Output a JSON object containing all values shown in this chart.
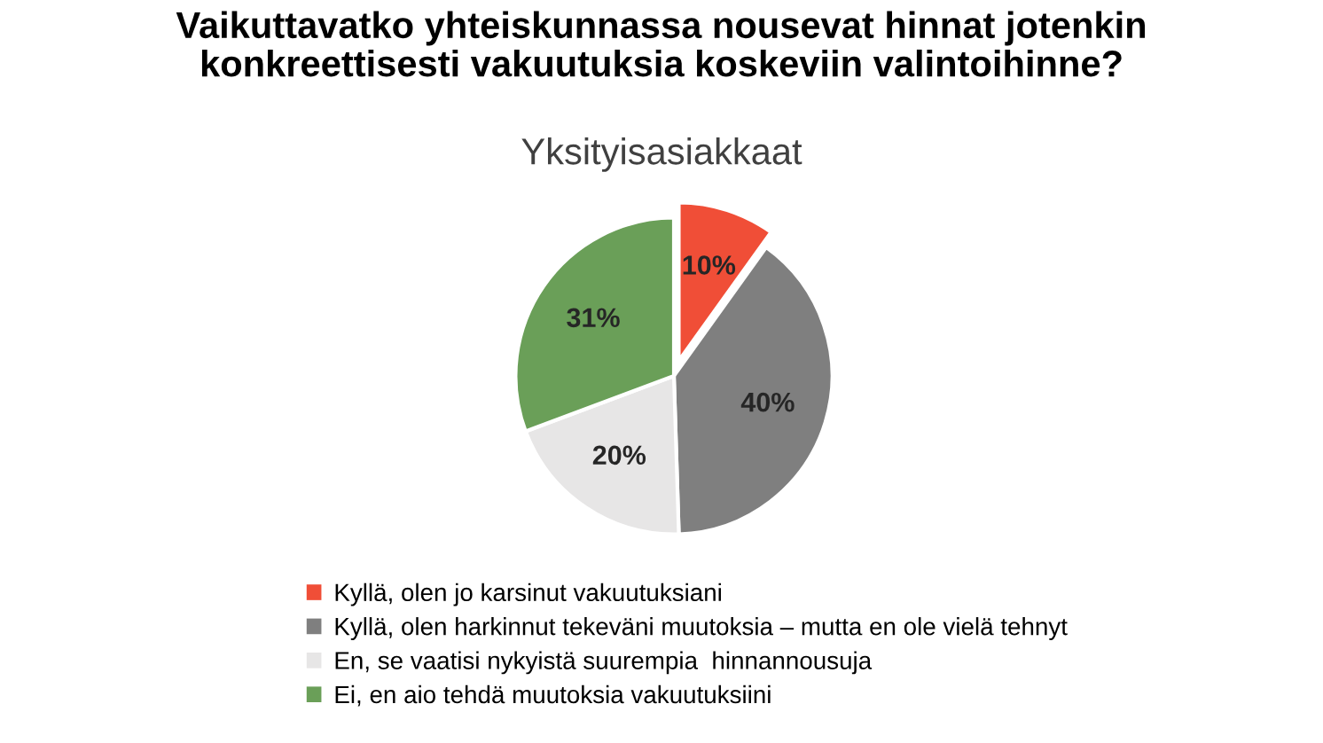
{
  "chart_data": {
    "type": "pie",
    "title": "Vaikuttavatko yhteiskunnassa nousevat hinnat jotenkin\nkonkreettisesti vakuutuksia koskeviin valintoihinne?",
    "subtitle": "Yksityisasiakkaat",
    "categories": [
      "Kyllä, olen jo karsinut vakuutuksiani",
      "Kyllä, olen harkinnut tekeväni muutoksia – mutta en ole vielä tehnyt",
      "En, se vaatisi nykyistä suurempia  hinnannousuja",
      "Ei, en aio tehdä muutoksia vakuutuksiini"
    ],
    "values": [
      10,
      40,
      20,
      31
    ],
    "colors": [
      "#f04e37",
      "#7f7f7f",
      "#e7e6e6",
      "#6a9f58"
    ],
    "value_labels": [
      "10%",
      "40%",
      "20%",
      "31%"
    ],
    "legend": "bottom"
  }
}
